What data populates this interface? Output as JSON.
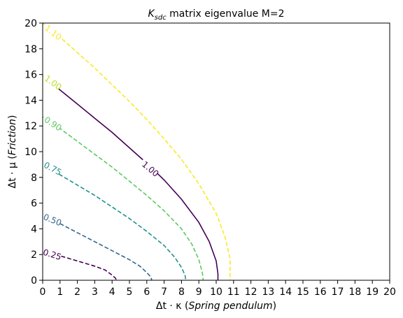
{
  "chart_data": {
    "type": "line",
    "title_base": "K",
    "title_sub": "sdc",
    "title_rest": " matrix eigenvalue  M=2",
    "xlabel_pre": "Δt · κ (",
    "xlabel_italic": "Spring pendulum",
    "xlabel_post": ")",
    "ylabel_pre": "Δt · μ (",
    "ylabel_italic": "Friction",
    "ylabel_post": ")",
    "xlim": [
      0,
      20
    ],
    "ylim": [
      0,
      20
    ],
    "xticks": [
      0,
      1,
      2,
      3,
      4,
      5,
      6,
      7,
      8,
      9,
      10,
      11,
      12,
      13,
      14,
      15,
      16,
      17,
      18,
      19,
      20
    ],
    "yticks": [
      0,
      2,
      4,
      6,
      8,
      10,
      12,
      14,
      16,
      18,
      20
    ],
    "grid": false,
    "series": [
      {
        "name": "0.25",
        "color": "#440154",
        "dashed": true,
        "label_at": [
          0.5,
          2.0
        ],
        "label_angle": 17,
        "points": [
          [
            0,
            2.2
          ],
          [
            1,
            1.9
          ],
          [
            2,
            1.5
          ],
          [
            3,
            1.1
          ],
          [
            3.6,
            0.8
          ],
          [
            4.0,
            0.4
          ],
          [
            4.2,
            0.15
          ],
          [
            4.25,
            0
          ]
        ]
      },
      {
        "name": "0.50",
        "color": "#31688e",
        "dashed": true,
        "label_at": [
          0.5,
          4.7
        ],
        "label_angle": 22,
        "points": [
          [
            0,
            5.0
          ],
          [
            1,
            4.4
          ],
          [
            2,
            3.7
          ],
          [
            3,
            3.0
          ],
          [
            4,
            2.3
          ],
          [
            5,
            1.6
          ],
          [
            5.6,
            1.1
          ],
          [
            6.0,
            0.6
          ],
          [
            6.2,
            0.3
          ],
          [
            6.3,
            0
          ]
        ]
      },
      {
        "name": "0.75",
        "color": "#21918c",
        "dashed": true,
        "label_at": [
          0.5,
          8.7
        ],
        "label_angle": 28,
        "points": [
          [
            0,
            9.0
          ],
          [
            1,
            8.2
          ],
          [
            2,
            7.4
          ],
          [
            3,
            6.6
          ],
          [
            4,
            5.7
          ],
          [
            5,
            4.8
          ],
          [
            6,
            3.8
          ],
          [
            7,
            2.7
          ],
          [
            7.6,
            1.8
          ],
          [
            8.0,
            1.0
          ],
          [
            8.2,
            0.4
          ],
          [
            8.25,
            0
          ]
        ]
      },
      {
        "name": "0.90",
        "color": "#5ec962",
        "dashed": true,
        "label_at": [
          0.5,
          12.2
        ],
        "label_angle": 33,
        "points": [
          [
            0,
            12.7
          ],
          [
            1,
            11.8
          ],
          [
            2,
            10.8
          ],
          [
            3,
            9.8
          ],
          [
            4,
            8.8
          ],
          [
            5,
            7.7
          ],
          [
            6,
            6.6
          ],
          [
            7,
            5.4
          ],
          [
            8,
            4.0
          ],
          [
            8.6,
            2.8
          ],
          [
            9.0,
            1.6
          ],
          [
            9.2,
            0.6
          ],
          [
            9.25,
            0
          ]
        ]
      },
      {
        "name": "1.00",
        "color": "#440154",
        "dashed": false,
        "label_at": [
          6.1,
          8.7
        ],
        "label_angle": 40,
        "points": [
          [
            0,
            15.8
          ],
          [
            1,
            14.8
          ],
          [
            2,
            13.7
          ],
          [
            3,
            12.6
          ],
          [
            4,
            11.5
          ],
          [
            5,
            10.3
          ],
          [
            6,
            9.1
          ],
          [
            7,
            7.8
          ],
          [
            8,
            6.3
          ],
          [
            9,
            4.5
          ],
          [
            9.6,
            3.0
          ],
          [
            10.0,
            1.5
          ],
          [
            10.1,
            0.5
          ],
          [
            10.1,
            0
          ]
        ]
      },
      {
        "name": "1.00",
        "color": "#bddf26",
        "dashed": true,
        "label_at": [
          0.5,
          15.4
        ],
        "label_angle": 36,
        "points": [
          [
            0,
            15.9
          ],
          [
            0.4,
            15.5
          ],
          [
            0.6,
            15.3
          ]
        ]
      },
      {
        "name": "1.10",
        "color": "#fde725",
        "dashed": true,
        "label_at": [
          0.5,
          19.3
        ],
        "label_angle": 38,
        "points": [
          [
            0,
            20.0
          ],
          [
            1,
            18.9
          ],
          [
            2,
            17.7
          ],
          [
            3,
            16.5
          ],
          [
            4,
            15.2
          ],
          [
            5,
            13.9
          ],
          [
            6,
            12.5
          ],
          [
            7,
            11.0
          ],
          [
            8,
            9.4
          ],
          [
            9,
            7.5
          ],
          [
            10,
            5.2
          ],
          [
            10.5,
            3.4
          ],
          [
            10.8,
            1.7
          ],
          [
            10.8,
            0
          ]
        ]
      }
    ]
  }
}
